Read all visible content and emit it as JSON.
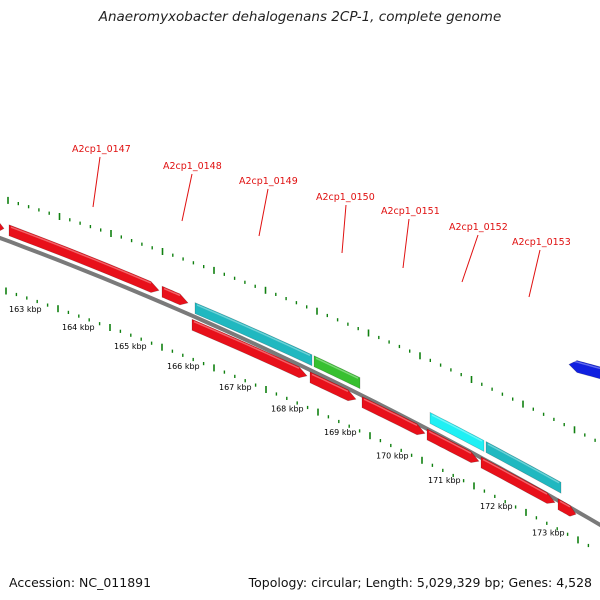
{
  "title": "Anaeromyxobacter dehalogenans 2CP-1, complete genome",
  "footer": {
    "accession": "Accession: NC_011891",
    "stats": "Topology: circular; Length: 5,029,329 bp; Genes: 4,528"
  },
  "colors": {
    "backbone": "#7a7a7a",
    "cds_forward_red": "#e8101a",
    "cds_reverse_teal": "#20b8c0",
    "cds_reverse_cyan": "#20f0f4",
    "rna_green": "#38c030",
    "other_blue": "#1020e0",
    "tick_green": "#108010",
    "label_red": "#e01010"
  },
  "kbp_ticks": [
    {
      "label": "163 kbp"
    },
    {
      "label": "164 kbp"
    },
    {
      "label": "165 kbp"
    },
    {
      "label": "166 kbp"
    },
    {
      "label": "167 kbp"
    },
    {
      "label": "168 kbp"
    },
    {
      "label": "169 kbp"
    },
    {
      "label": "170 kbp"
    },
    {
      "label": "171 kbp"
    },
    {
      "label": "172 kbp"
    },
    {
      "label": "173 kbp"
    }
  ],
  "gene_labels": [
    {
      "name": "A2cp1_0147"
    },
    {
      "name": "A2cp1_0148"
    },
    {
      "name": "A2cp1_0149"
    },
    {
      "name": "A2cp1_0150"
    },
    {
      "name": "A2cp1_0151"
    },
    {
      "name": "A2cp1_0152"
    },
    {
      "name": "A2cp1_0153"
    }
  ]
}
